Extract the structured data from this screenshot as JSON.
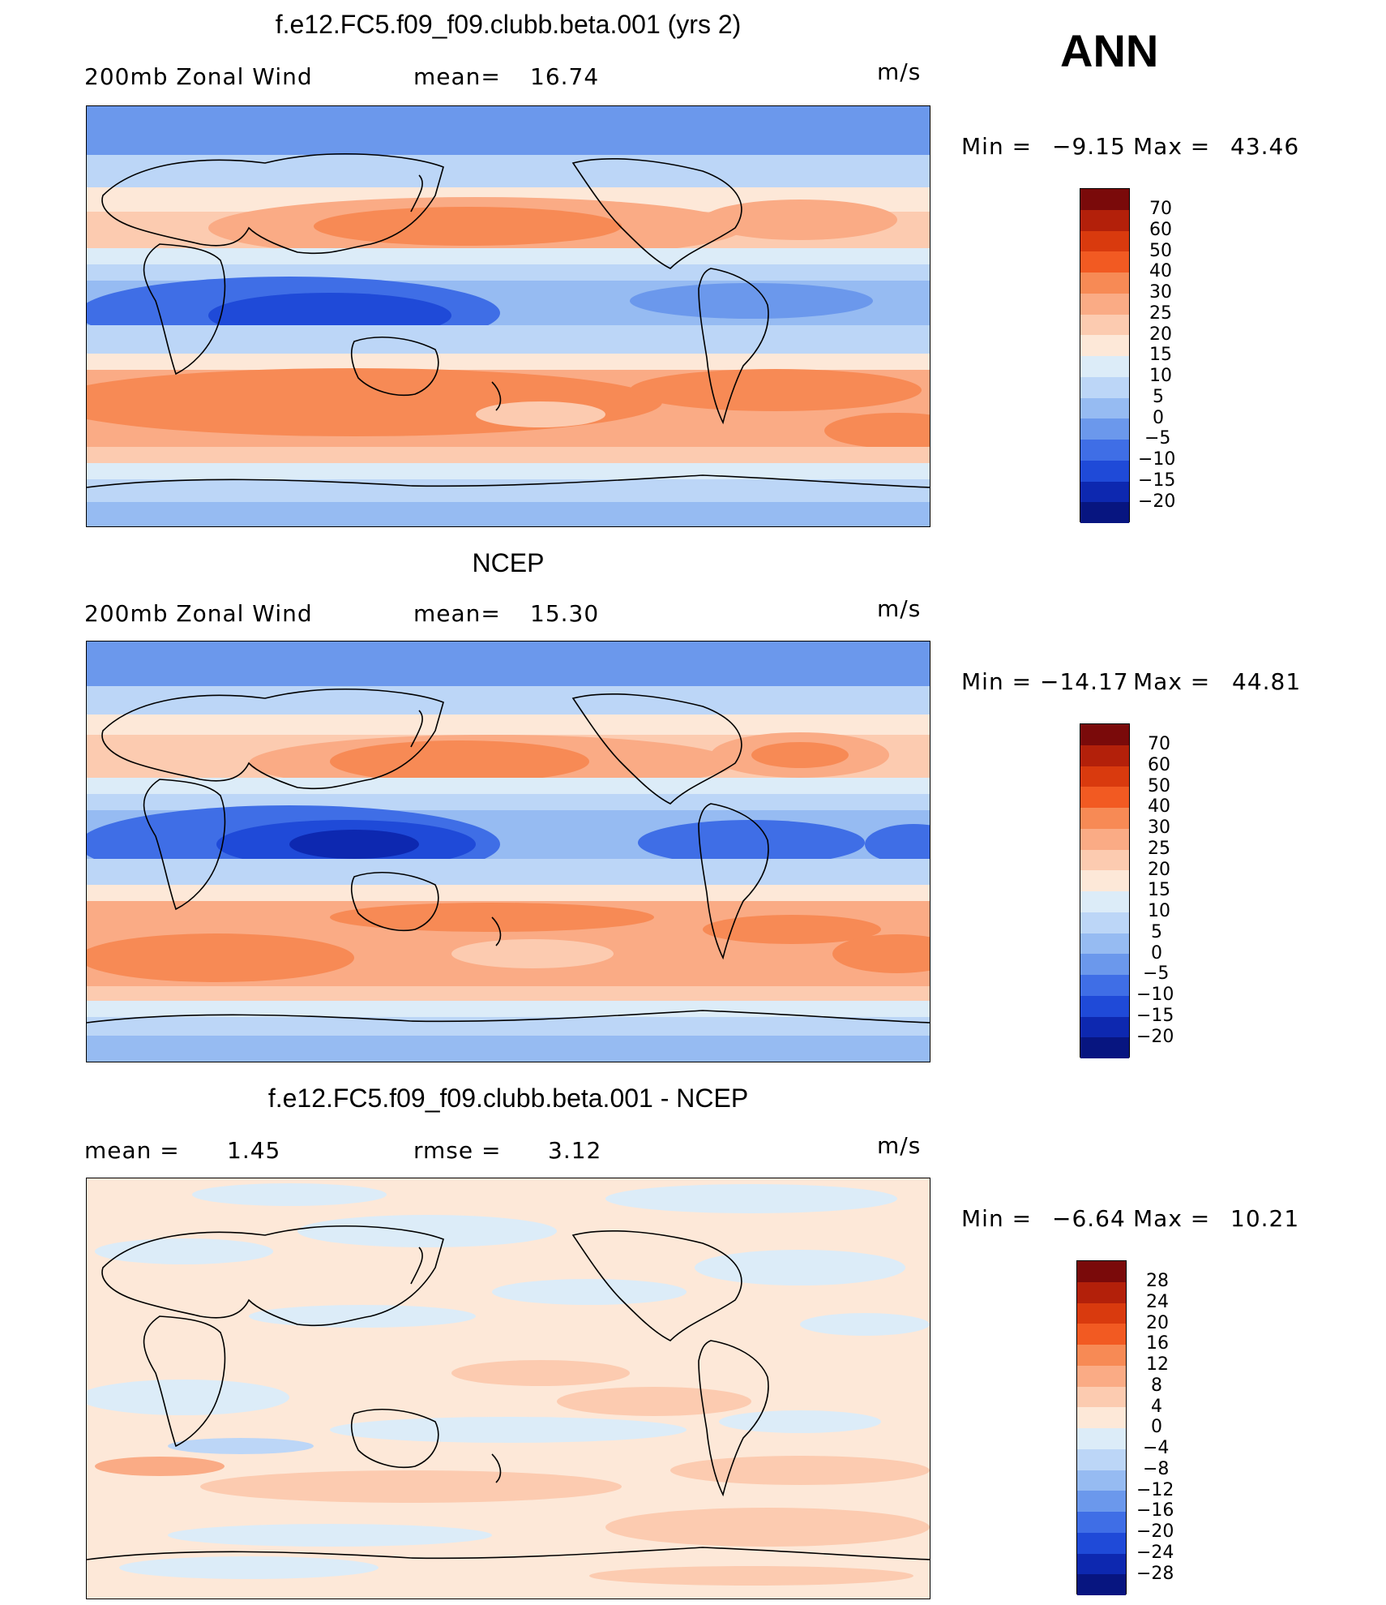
{
  "season": "ANN",
  "panels": [
    {
      "title": "f.e12.FC5.f09_f09.clubb.beta.001 (yrs 2)",
      "var_label": "200mb Zonal Wind",
      "stat_label": "mean=",
      "stat_value": "16.74",
      "stat2_label": "",
      "stat2_value": "",
      "units": "m/s",
      "min_label": "Min =",
      "min_value": "−9.15",
      "max_label": "Max =",
      "max_value": "43.46",
      "levels": [
        "70",
        "60",
        "50",
        "40",
        "30",
        "25",
        "20",
        "15",
        "10",
        "5",
        "0",
        "−5",
        "−10",
        "−15",
        "−20"
      ]
    },
    {
      "title": "NCEP",
      "var_label": "200mb Zonal Wind",
      "stat_label": "mean=",
      "stat_value": "15.30",
      "stat2_label": "",
      "stat2_value": "",
      "units": "m/s",
      "min_label": "Min =",
      "min_value": "−14.17",
      "max_label": "Max =",
      "max_value": "44.81",
      "levels": [
        "70",
        "60",
        "50",
        "40",
        "30",
        "25",
        "20",
        "15",
        "10",
        "5",
        "0",
        "−5",
        "−10",
        "−15",
        "−20"
      ]
    },
    {
      "title": "f.e12.FC5.f09_f09.clubb.beta.001 - NCEP",
      "var_label": "",
      "stat_label": "mean =",
      "stat_value": "1.45",
      "stat2_label": "rmse =",
      "stat2_value": "3.12",
      "units": "m/s",
      "min_label": "Min =",
      "min_value": "−6.64",
      "max_label": "Max =",
      "max_value": "10.21",
      "levels": [
        "28",
        "24",
        "20",
        "16",
        "12",
        "8",
        "4",
        "0",
        "−4",
        "−8",
        "−12",
        "−16",
        "−20",
        "−24",
        "−28"
      ]
    }
  ],
  "colors": {
    "abs_scale": [
      "#7a0a0a",
      "#b3200a",
      "#d93a0e",
      "#f25a22",
      "#f78a55",
      "#faab85",
      "#fccbb0",
      "#fde8d8",
      "#dcecf8",
      "#bcd6f7",
      "#96bbf2",
      "#6b98ec",
      "#3f6ee6",
      "#1f4ad8",
      "#0d28b0",
      "#071580"
    ],
    "diff_scale": [
      "#7a0a0a",
      "#b3200a",
      "#d93a0e",
      "#f25a22",
      "#f78a55",
      "#faab85",
      "#fccbb0",
      "#fde8d8",
      "#dcecf8",
      "#bcd6f7",
      "#96bbf2",
      "#6b98ec",
      "#3f6ee6",
      "#1f4ad8",
      "#0d28b0",
      "#071580"
    ]
  }
}
